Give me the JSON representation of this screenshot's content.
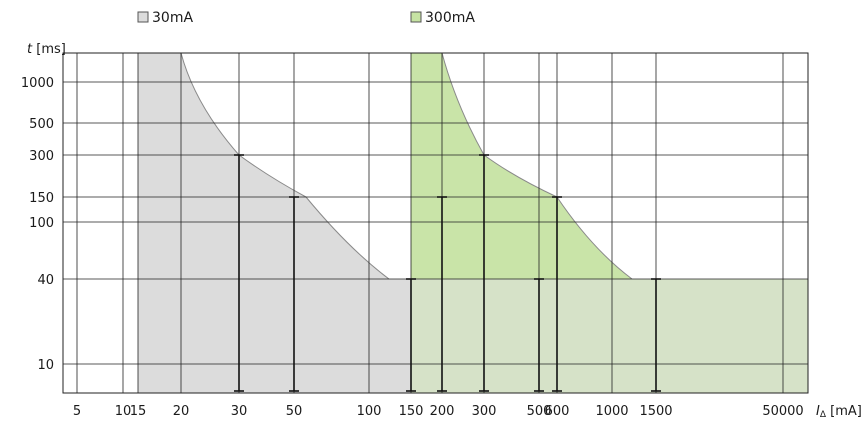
{
  "chart_data": {
    "type": "area",
    "title": "",
    "xlabel": "IΔ [mA]",
    "ylabel": "t [ms]",
    "xlabel_parts": {
      "symbol": "I",
      "subscript": "Δ",
      "unit": " [mA]"
    },
    "ylabel_parts": {
      "symbol": "t",
      "unit": " [ms]"
    },
    "x_ticks": [
      "5",
      "10",
      "15",
      "20",
      "30",
      "50",
      "100",
      "150",
      "200",
      "300",
      "500",
      "600",
      "1000",
      "1500",
      "50000"
    ],
    "y_ticks": [
      "1000",
      "500",
      "300",
      "150",
      "100",
      "40",
      "10"
    ],
    "grid": true,
    "legend_position": "top",
    "series": [
      {
        "name": "30mA",
        "color": "#dcdcdc",
        "edge_color": "#8a8a8a",
        "curve": [
          {
            "x": "20",
            "y": "1000"
          },
          {
            "x": "30",
            "y": "300"
          },
          {
            "x": "50",
            "y": "150"
          },
          {
            "x": "100",
            "y": "40"
          },
          {
            "x": "150",
            "y": "40"
          }
        ],
        "markers": [
          {
            "x": "30",
            "y": "300"
          },
          {
            "x": "50",
            "y": "150"
          },
          {
            "x": "150",
            "y": "40"
          }
        ]
      },
      {
        "name": "300mA",
        "color": "#c6e3a3",
        "edge_color": "#8a8a8a",
        "curve": [
          {
            "x": "200",
            "y": "1000"
          },
          {
            "x": "300",
            "y": "300"
          },
          {
            "x": "500",
            "y": "150"
          },
          {
            "x": "1000",
            "y": "40"
          },
          {
            "x": "1500",
            "y": "40"
          }
        ],
        "markers": [
          {
            "x": "200",
            "y": "150"
          },
          {
            "x": "300",
            "y": "300"
          },
          {
            "x": "600",
            "y": "150"
          },
          {
            "x": "1500",
            "y": "40"
          },
          {
            "x": "500",
            "y": "40"
          }
        ]
      }
    ]
  }
}
